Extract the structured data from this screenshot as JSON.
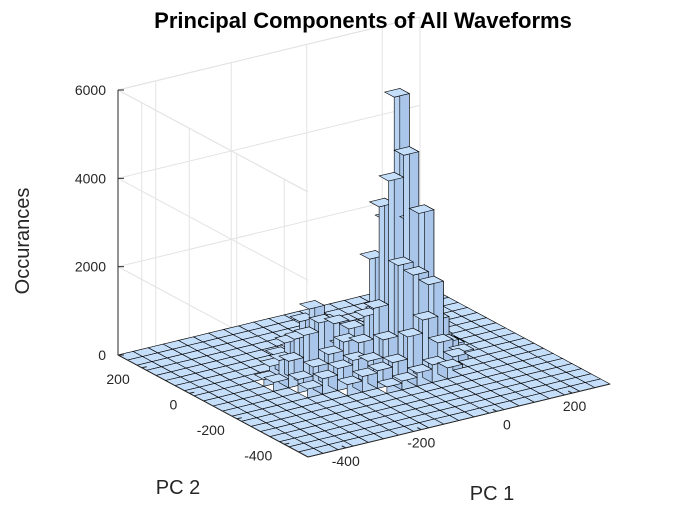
{
  "chart_data": {
    "type": "bar3d",
    "title": "Principal Components of All Waveforms",
    "xlabel": "PC 1",
    "ylabel": "PC 2",
    "zlabel": "Occurances",
    "x_ticks": [
      "-400",
      "-200",
      "0",
      "200"
    ],
    "y_ticks": [
      "-400",
      "-200",
      "0",
      "200"
    ],
    "z_ticks": [
      "0",
      "2000",
      "4000",
      "6000"
    ],
    "xlim": [
      -500,
      300
    ],
    "ylim": [
      -500,
      300
    ],
    "zlim": [
      0,
      6000
    ],
    "grid": "on",
    "face_color": "#c5defa",
    "edge_color": "#000000",
    "bins": {
      "x_edges": [
        -500,
        -460,
        -420,
        -380,
        -340,
        -300,
        -260,
        -220,
        -180,
        -140,
        -100,
        -60,
        -20,
        20,
        60,
        100,
        140,
        180,
        220,
        260,
        300
      ],
      "y_edges": [
        -500,
        -460,
        -420,
        -380,
        -340,
        -300,
        -260,
        -220,
        -180,
        -140,
        -100,
        -60,
        -20,
        20,
        60,
        100,
        140,
        180,
        220,
        260,
        300
      ]
    },
    "nonzero_counts": [
      {
        "x_bin": 12,
        "y_bin": 9,
        "count": 4800
      },
      {
        "x_bin": 12,
        "y_bin": 10,
        "count": 6000
      },
      {
        "x_bin": 12,
        "y_bin": 11,
        "count": 3100
      },
      {
        "x_bin": 11,
        "y_bin": 9,
        "count": 4300
      },
      {
        "x_bin": 11,
        "y_bin": 10,
        "count": 3600
      },
      {
        "x_bin": 13,
        "y_bin": 9,
        "count": 3400
      },
      {
        "x_bin": 13,
        "y_bin": 10,
        "count": 3100
      },
      {
        "x_bin": 11,
        "y_bin": 8,
        "count": 2500
      },
      {
        "x_bin": 12,
        "y_bin": 8,
        "count": 2200
      },
      {
        "x_bin": 11,
        "y_bin": 11,
        "count": 2300
      },
      {
        "x_bin": 13,
        "y_bin": 8,
        "count": 1900
      },
      {
        "x_bin": 13,
        "y_bin": 11,
        "count": 1700
      },
      {
        "x_bin": 14,
        "y_bin": 10,
        "count": 1100
      },
      {
        "x_bin": 14,
        "y_bin": 9,
        "count": 900
      },
      {
        "x_bin": 10,
        "y_bin": 10,
        "count": 1200
      },
      {
        "x_bin": 10,
        "y_bin": 9,
        "count": 1500
      },
      {
        "x_bin": 10,
        "y_bin": 11,
        "count": 800
      },
      {
        "x_bin": 10,
        "y_bin": 8,
        "count": 900
      },
      {
        "x_bin": 12,
        "y_bin": 7,
        "count": 1300
      },
      {
        "x_bin": 11,
        "y_bin": 7,
        "count": 1000
      },
      {
        "x_bin": 13,
        "y_bin": 7,
        "count": 700
      },
      {
        "x_bin": 9,
        "y_bin": 10,
        "count": 1000
      },
      {
        "x_bin": 9,
        "y_bin": 9,
        "count": 800
      },
      {
        "x_bin": 9,
        "y_bin": 11,
        "count": 500
      },
      {
        "x_bin": 12,
        "y_bin": 12,
        "count": 900
      },
      {
        "x_bin": 11,
        "y_bin": 12,
        "count": 600
      },
      {
        "x_bin": 14,
        "y_bin": 8,
        "count": 500
      },
      {
        "x_bin": 14,
        "y_bin": 11,
        "count": 300
      },
      {
        "x_bin": 8,
        "y_bin": 10,
        "count": 1200
      },
      {
        "x_bin": 8,
        "y_bin": 11,
        "count": 1100
      },
      {
        "x_bin": 8,
        "y_bin": 9,
        "count": 900
      },
      {
        "x_bin": 7,
        "y_bin": 11,
        "count": 1500
      },
      {
        "x_bin": 7,
        "y_bin": 10,
        "count": 1300
      },
      {
        "x_bin": 7,
        "y_bin": 12,
        "count": 1100
      },
      {
        "x_bin": 7,
        "y_bin": 9,
        "count": 700
      },
      {
        "x_bin": 6,
        "y_bin": 11,
        "count": 900
      },
      {
        "x_bin": 6,
        "y_bin": 10,
        "count": 1100
      },
      {
        "x_bin": 6,
        "y_bin": 12,
        "count": 700
      },
      {
        "x_bin": 6,
        "y_bin": 9,
        "count": 500
      },
      {
        "x_bin": 5,
        "y_bin": 11,
        "count": 500
      },
      {
        "x_bin": 5,
        "y_bin": 10,
        "count": 600
      },
      {
        "x_bin": 5,
        "y_bin": 9,
        "count": 300
      },
      {
        "x_bin": 8,
        "y_bin": 8,
        "count": 600
      },
      {
        "x_bin": 7,
        "y_bin": 8,
        "count": 500
      },
      {
        "x_bin": 9,
        "y_bin": 8,
        "count": 500
      },
      {
        "x_bin": 10,
        "y_bin": 7,
        "count": 500
      },
      {
        "x_bin": 9,
        "y_bin": 7,
        "count": 400
      },
      {
        "x_bin": 8,
        "y_bin": 7,
        "count": 350
      },
      {
        "x_bin": 7,
        "y_bin": 7,
        "count": 250
      },
      {
        "x_bin": 6,
        "y_bin": 8,
        "count": 350
      },
      {
        "x_bin": 5,
        "y_bin": 8,
        "count": 200
      },
      {
        "x_bin": 8,
        "y_bin": 12,
        "count": 600
      },
      {
        "x_bin": 9,
        "y_bin": 12,
        "count": 400
      },
      {
        "x_bin": 10,
        "y_bin": 12,
        "count": 500
      },
      {
        "x_bin": 6,
        "y_bin": 13,
        "count": 300
      },
      {
        "x_bin": 7,
        "y_bin": 13,
        "count": 350
      },
      {
        "x_bin": 8,
        "y_bin": 13,
        "count": 250
      },
      {
        "x_bin": 11,
        "y_bin": 6,
        "count": 300
      },
      {
        "x_bin": 12,
        "y_bin": 6,
        "count": 400
      },
      {
        "x_bin": 13,
        "y_bin": 6,
        "count": 250
      },
      {
        "x_bin": 10,
        "y_bin": 6,
        "count": 200
      },
      {
        "x_bin": 14,
        "y_bin": 7,
        "count": 300
      },
      {
        "x_bin": 15,
        "y_bin": 9,
        "count": 250
      },
      {
        "x_bin": 15,
        "y_bin": 10,
        "count": 300
      },
      {
        "x_bin": 15,
        "y_bin": 8,
        "count": 200
      },
      {
        "x_bin": 12,
        "y_bin": 13,
        "count": 200
      },
      {
        "x_bin": 13,
        "y_bin": 12,
        "count": 250
      },
      {
        "x_bin": 4,
        "y_bin": 10,
        "count": 200
      },
      {
        "x_bin": 4,
        "y_bin": 11,
        "count": 150
      },
      {
        "x_bin": 5,
        "y_bin": 12,
        "count": 250
      },
      {
        "x_bin": 9,
        "y_bin": 6,
        "count": 150
      },
      {
        "x_bin": 11,
        "y_bin": 13,
        "count": 150
      }
    ]
  }
}
